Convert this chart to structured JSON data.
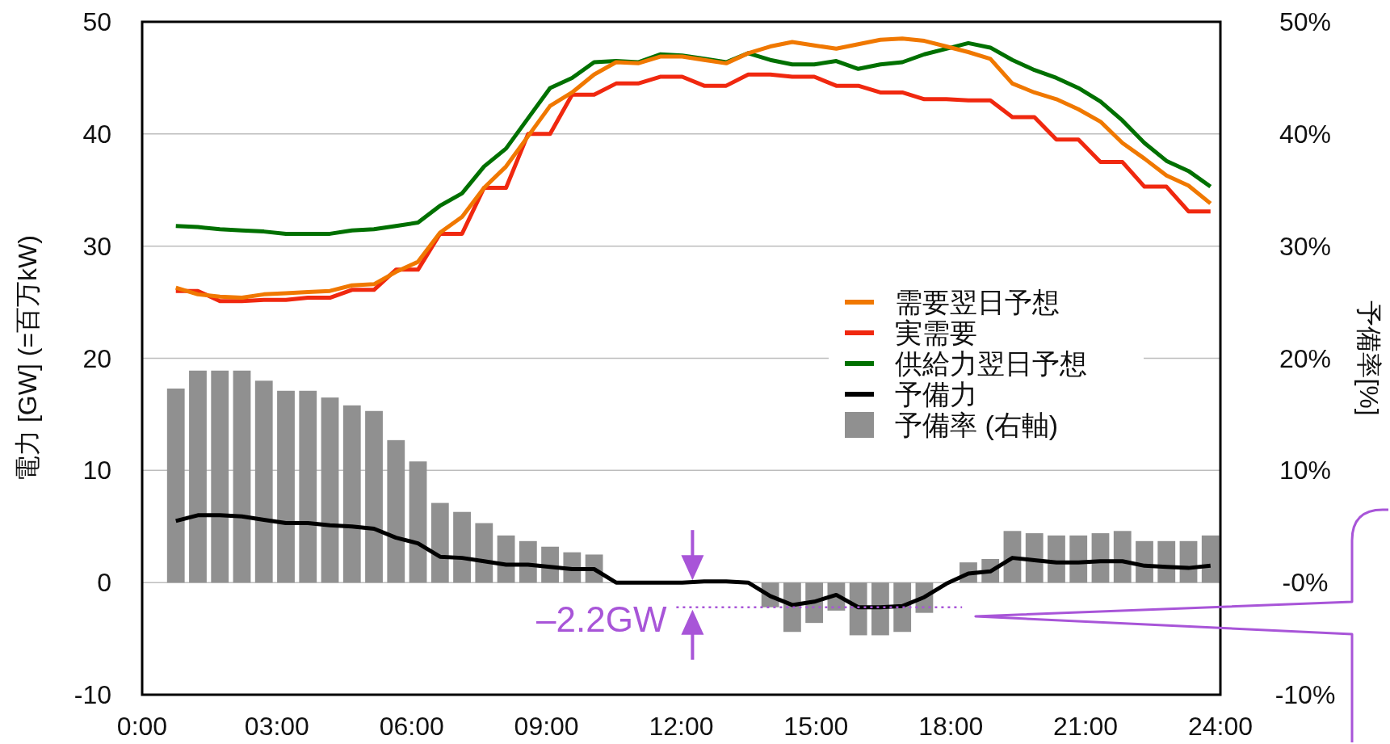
{
  "chart_data": {
    "type": "line",
    "xlabel": null,
    "ylabel": "電力 [GW] (=百万kW)",
    "y2label": "予備率[%]",
    "x": [
      0.75,
      1.24,
      1.73,
      2.22,
      2.71,
      3.2,
      3.69,
      4.18,
      4.67,
      5.16,
      5.65,
      6.14,
      6.63,
      7.12,
      7.61,
      8.1,
      8.59,
      9.08,
      9.57,
      10.06,
      10.55,
      11.04,
      11.53,
      12.02,
      12.51,
      13.0,
      13.49,
      13.98,
      14.47,
      14.96,
      15.45,
      15.94,
      16.43,
      16.92,
      17.41,
      17.9,
      18.39,
      18.88,
      19.37,
      19.86,
      20.35,
      20.84,
      21.33,
      21.82,
      22.31,
      22.8,
      23.29,
      23.78
    ],
    "series": [
      {
        "name": "需要翌日予想",
        "color": "#f07800",
        "values": [
          26.3,
          25.7,
          25.5,
          25.4,
          25.7,
          25.8,
          25.9,
          26.0,
          26.5,
          26.6,
          27.7,
          28.6,
          31.2,
          32.6,
          35.2,
          37.1,
          39.8,
          42.5,
          43.7,
          45.3,
          46.4,
          46.3,
          46.9,
          46.9,
          46.6,
          46.3,
          47.2,
          47.8,
          48.2,
          47.9,
          47.6,
          48.0,
          48.4,
          48.5,
          48.3,
          47.8,
          47.3,
          46.7,
          44.5,
          43.7,
          43.1,
          42.2,
          41.1,
          39.2,
          37.8,
          36.3,
          35.4,
          33.8
        ]
      },
      {
        "name": "実需要",
        "color": "#f0280f",
        "values": [
          26.0,
          26.0,
          25.1,
          25.1,
          25.2,
          25.2,
          25.4,
          25.4,
          26.1,
          26.1,
          27.9,
          27.9,
          31.1,
          31.1,
          35.2,
          35.2,
          40.0,
          40.0,
          43.5,
          43.5,
          44.5,
          44.5,
          45.1,
          45.1,
          44.3,
          44.3,
          45.3,
          45.3,
          45.1,
          45.1,
          44.3,
          44.3,
          43.7,
          43.7,
          43.1,
          43.1,
          43.0,
          43.0,
          41.5,
          41.5,
          39.5,
          39.5,
          37.5,
          37.5,
          35.3,
          35.3,
          33.1,
          33.1
        ]
      },
      {
        "name": "供給力翌日予想",
        "color": "#007000",
        "values": [
          31.8,
          31.7,
          31.5,
          31.4,
          31.3,
          31.1,
          31.1,
          31.1,
          31.4,
          31.5,
          31.8,
          32.1,
          33.6,
          34.7,
          37.1,
          38.7,
          41.4,
          44.1,
          45.0,
          46.4,
          46.5,
          46.4,
          47.1,
          47.0,
          46.7,
          46.4,
          47.2,
          46.6,
          46.2,
          46.2,
          46.5,
          45.8,
          46.2,
          46.4,
          47.1,
          47.6,
          48.1,
          47.7,
          46.6,
          45.7,
          45.0,
          44.1,
          42.9,
          41.2,
          39.2,
          37.6,
          36.7,
          35.3
        ]
      },
      {
        "name": "予備力",
        "color": "#000000",
        "values": [
          5.5,
          6.0,
          6.0,
          5.9,
          5.6,
          5.3,
          5.3,
          5.1,
          5.0,
          4.8,
          4.0,
          3.5,
          2.3,
          2.2,
          1.9,
          1.6,
          1.6,
          1.4,
          1.2,
          1.2,
          0,
          0,
          0,
          0,
          0.1,
          0.1,
          0,
          -1.2,
          -2.0,
          -1.7,
          -1.1,
          -2.2,
          -2.2,
          -2.1,
          -1.3,
          -0.1,
          0.8,
          1.0,
          2.2,
          2.0,
          1.8,
          1.8,
          1.9,
          1.9,
          1.5,
          1.4,
          1.3,
          1.5
        ]
      },
      {
        "name": "予備率 (右軸)",
        "type": "bar",
        "axis": "y2",
        "color": "#909090",
        "values": [
          17.3,
          18.9,
          18.9,
          18.9,
          18.0,
          17.1,
          17.1,
          16.5,
          15.8,
          15.3,
          12.7,
          10.8,
          7.1,
          6.3,
          5.3,
          4.2,
          3.7,
          3.2,
          2.7,
          2.5,
          0,
          0,
          0,
          0,
          0,
          0,
          0,
          -2.2,
          -4.4,
          -3.6,
          -2.5,
          -4.7,
          -4.7,
          -4.4,
          -2.7,
          0,
          1.8,
          2.1,
          4.6,
          4.4,
          4.2,
          4.2,
          4.4,
          4.6,
          3.7,
          3.7,
          3.7,
          4.2
        ]
      }
    ],
    "xlim": [
      0,
      24
    ],
    "xticks": [
      {
        "value": 0,
        "label": "0:00"
      },
      {
        "value": 3,
        "label": "03:00"
      },
      {
        "value": 6,
        "label": "06:00"
      },
      {
        "value": 9,
        "label": "09:00"
      },
      {
        "value": 12,
        "label": "12:00"
      },
      {
        "value": 15,
        "label": "15:00"
      },
      {
        "value": 18,
        "label": "18:00"
      },
      {
        "value": 21,
        "label": "21:00"
      },
      {
        "value": 24,
        "label": "24:00"
      }
    ],
    "ylim": [
      -10,
      50
    ],
    "yticks": [
      -10,
      0,
      10,
      20,
      30,
      40,
      50
    ],
    "y2lim": [
      -10,
      50
    ],
    "y2ticks": [
      {
        "value": -10,
        "label": "-10%"
      },
      {
        "value": 0,
        "label": "-0%"
      },
      {
        "value": 10,
        "label": "10%"
      },
      {
        "value": 20,
        "label": "20%"
      },
      {
        "value": 30,
        "label": "30%"
      },
      {
        "value": 40,
        "label": "40%"
      },
      {
        "value": 50,
        "label": "50%"
      }
    ],
    "ref_lines": [
      {
        "axis": "y",
        "value": -2.2,
        "label": "–2.2GW",
        "color": "#a855d8",
        "line_style": "dotted"
      }
    ],
    "grid": "y",
    "legend": "right",
    "line_style": "solid",
    "marker": "none"
  }
}
